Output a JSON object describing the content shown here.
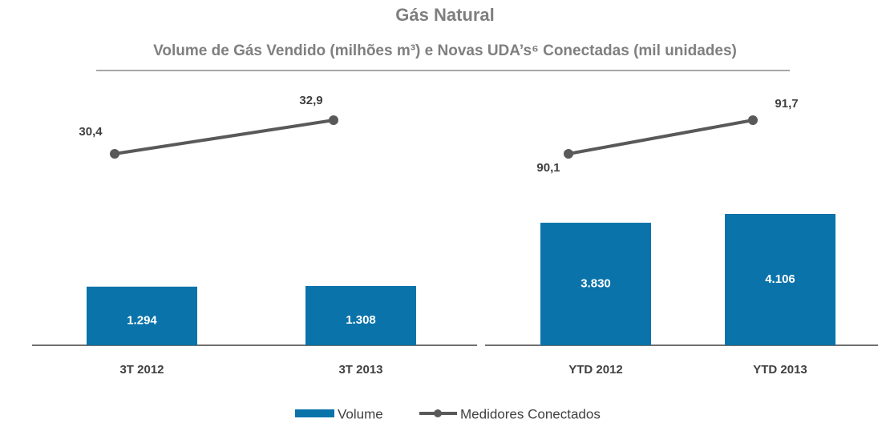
{
  "title": "Gás Natural",
  "subtitle": "Volume de Gás Vendido (milhões m³) e Novas UDA’s⁶ Conectadas (mil unidades)",
  "chart_data": [
    {
      "type": "combo",
      "categories": [
        "3T 2012",
        "3T 2013"
      ],
      "series": [
        {
          "name": "Volume",
          "type": "bar",
          "color": "#0a73aa",
          "values": [
            1294,
            1308
          ],
          "value_labels": [
            "1.294",
            "1.308"
          ]
        },
        {
          "name": "Medidores Conectados",
          "type": "line",
          "axis": "y2",
          "color": "#595959",
          "values": [
            30.4,
            32.9
          ],
          "value_labels": [
            "30,4",
            "32,9"
          ]
        }
      ]
    },
    {
      "type": "combo",
      "categories": [
        "YTD 2012",
        "YTD 2013"
      ],
      "series": [
        {
          "name": "Volume",
          "type": "bar",
          "color": "#0a73aa",
          "values": [
            3830,
            4106
          ],
          "value_labels": [
            "3.830",
            "4.106"
          ]
        },
        {
          "name": "Medidores Conectados",
          "type": "line",
          "axis": "y2",
          "color": "#595959",
          "values": [
            90.1,
            91.7
          ],
          "value_labels": [
            "90,1",
            "91,7"
          ]
        }
      ]
    }
  ]
}
